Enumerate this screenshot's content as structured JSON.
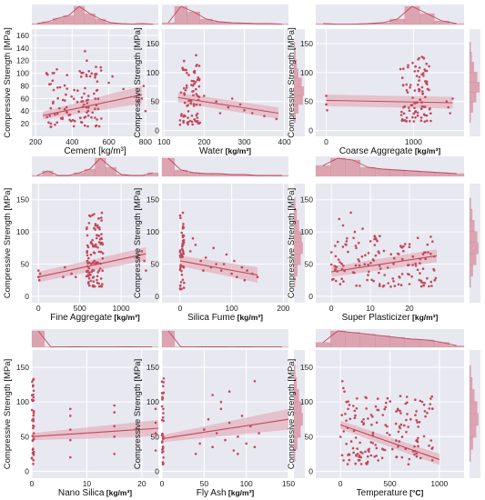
{
  "colors": {
    "panel_bg": "#e8e8f0",
    "grid": "#ffffff",
    "accent": "#c0485c",
    "band": "#e2a0ad",
    "bar": "#d98e9c"
  },
  "chart_data": [
    {
      "type": "scatter",
      "xlabel": "Cement [kg/m³]",
      "ylabel": "Compressive Strength [MPa]",
      "xlim": [
        180,
        870
      ],
      "ylim": [
        0,
        170
      ],
      "xticks": [
        200,
        400,
        600,
        800
      ],
      "yticks": [
        20,
        40,
        60,
        80,
        100,
        120,
        140,
        160
      ],
      "trend": {
        "x": [
          240,
          780
        ],
        "y": [
          33,
          66
        ],
        "band": [
          6,
          14
        ]
      },
      "cluster": {
        "x": [
          260,
          560
        ],
        "y": [
          15,
          110
        ],
        "n": 110
      },
      "points": {
        "x": [
          470,
          480,
          530,
          600,
          620,
          680,
          780,
          790,
          800,
          760
        ],
        "y": [
          135,
          120,
          110,
          85,
          95,
          75,
          60,
          80,
          40,
          55
        ]
      },
      "xhist": [
        0.05,
        0.15,
        0.35,
        0.5,
        1.0,
        0.6,
        0.3,
        0.1,
        0.05,
        0.03,
        0.05,
        0.02
      ],
      "yhist": [
        0.1,
        0.3,
        0.6,
        0.8,
        0.7,
        0.5,
        0.3,
        0.2,
        0.1,
        0.05
      ]
    },
    {
      "type": "scatter",
      "xlabel": "Water",
      "xunit": "[kg/m³]",
      "ylabel": "Compressive Strength [MPa]",
      "xlim": [
        95,
        410
      ],
      "ylim": [
        -10,
        175
      ],
      "xticks": [
        100,
        200,
        300,
        400
      ],
      "yticks": [
        0,
        50,
        100,
        150
      ],
      "trend": {
        "x": [
          135,
          385
        ],
        "y": [
          57,
          30
        ],
        "band": [
          8,
          10
        ]
      },
      "cluster": {
        "x": [
          140,
          190
        ],
        "y": [
          10,
          115
        ],
        "n": 80
      },
      "points": {
        "x": [
          200,
          230,
          260,
          270,
          300,
          320,
          350,
          380,
          240,
          290,
          180,
          150
        ],
        "y": [
          60,
          50,
          40,
          55,
          35,
          30,
          25,
          20,
          30,
          45,
          130,
          120
        ]
      },
      "xhist": [
        0.1,
        1.0,
        0.7,
        0.3,
        0.15,
        0.1,
        0.08,
        0.05,
        0.05,
        0.03
      ],
      "yhist": [
        0.15,
        0.4,
        0.8,
        0.9,
        0.7,
        0.4,
        0.25,
        0.15,
        0.08
      ]
    },
    {
      "type": "scatter",
      "xlabel": "Coarse Aggregate",
      "xunit": "[kg/m³]",
      "ylabel": "Compressive Strength [MPa]",
      "xlim": [
        -120,
        1580
      ],
      "ylim": [
        -10,
        175
      ],
      "xticks": [
        0,
        1000
      ],
      "yticks": [
        0,
        50,
        100,
        150
      ],
      "trend": {
        "x": [
          0,
          1450
        ],
        "y": [
          52,
          48
        ],
        "band": [
          10,
          10
        ]
      },
      "cluster": {
        "x": [
          850,
          1200
        ],
        "y": [
          15,
          130
        ],
        "n": 100
      },
      "points": {
        "x": [
          0,
          0,
          10,
          1400,
          1420,
          1450,
          1380
        ],
        "y": [
          45,
          60,
          35,
          40,
          30,
          55,
          50
        ]
      },
      "xhist": [
        0.05,
        0.02,
        0.02,
        0.05,
        0.1,
        0.3,
        1.0,
        0.6,
        0.2,
        0.05
      ],
      "yhist": [
        0.1,
        0.3,
        0.6,
        0.9,
        0.7,
        0.4,
        0.2,
        0.1
      ]
    },
    {
      "type": "scatter",
      "xlabel": "Fine Aggregate",
      "xunit": "[kg/m³]",
      "ylabel": "Compressive Strength [MPa]",
      "xlim": [
        -80,
        1450
      ],
      "ylim": [
        -10,
        175
      ],
      "xticks": [
        0,
        500,
        1000
      ],
      "yticks": [
        0,
        50,
        100,
        150
      ],
      "trend": {
        "x": [
          0,
          1300
        ],
        "y": [
          30,
          66
        ],
        "band": [
          8,
          10
        ]
      },
      "cluster": {
        "x": [
          580,
          780
        ],
        "y": [
          15,
          130
        ],
        "n": 110
      },
      "points": {
        "x": [
          0,
          0,
          10,
          20,
          300,
          320,
          1200,
          1250,
          1300,
          1280,
          400,
          450
        ],
        "y": [
          30,
          40,
          25,
          35,
          30,
          45,
          60,
          70,
          40,
          55,
          35,
          30
        ]
      },
      "xhist": [
        0.05,
        0.3,
        0.05,
        0.05,
        0.2,
        0.4,
        1.0,
        0.5,
        0.1,
        0.05,
        0.05,
        0.2
      ],
      "yhist": [
        0.1,
        0.3,
        0.6,
        0.8,
        0.7,
        0.45,
        0.25,
        0.12
      ]
    },
    {
      "type": "scatter",
      "xlabel": "Silica Fume",
      "xunit": "[kg/m³]",
      "ylabel": "Compressive Strength [MPa]",
      "xlim": [
        -35,
        210
      ],
      "ylim": [
        -10,
        175
      ],
      "xticks": [
        0,
        100,
        200
      ],
      "yticks": [
        0,
        50,
        100,
        150
      ],
      "trend": {
        "x": [
          0,
          150
        ],
        "y": [
          55,
          33
        ],
        "band": [
          8,
          12
        ]
      },
      "cluster": {
        "x": [
          0,
          8
        ],
        "y": [
          10,
          135
        ],
        "n": 50
      },
      "points": {
        "x": [
          20,
          30,
          40,
          50,
          60,
          70,
          80,
          90,
          100,
          110,
          120,
          130,
          140,
          150,
          25,
          45,
          65,
          85,
          105,
          125
        ],
        "y": [
          70,
          80,
          55,
          60,
          45,
          50,
          40,
          65,
          35,
          30,
          45,
          40,
          35,
          30,
          90,
          40,
          75,
          50,
          55,
          25
        ]
      },
      "xhist": [
        1.0,
        0.35,
        0.2,
        0.15,
        0.15,
        0.1,
        0.1,
        0.05,
        0.05,
        0.05
      ],
      "yhist": [
        0.1,
        0.3,
        0.6,
        0.8,
        0.7,
        0.45,
        0.25,
        0.12
      ]
    },
    {
      "type": "scatter",
      "xlabel": "Super Plasticizer",
      "xunit": "[kg/m³]",
      "ylabel": "Compressive Strength [MPa]",
      "xlim": [
        -4,
        34
      ],
      "ylim": [
        -10,
        175
      ],
      "xticks": [
        0,
        10,
        20
      ],
      "yticks": [
        0,
        50,
        100,
        150
      ],
      "trend": {
        "x": [
          0,
          27
        ],
        "y": [
          38,
          63
        ],
        "band": [
          8,
          10
        ]
      },
      "cluster": {
        "x": [
          0,
          27
        ],
        "y": [
          15,
          95
        ],
        "n": 140
      },
      "points": {
        "x": [
          3,
          5,
          6,
          8,
          2,
          4
        ],
        "y": [
          110,
          130,
          100,
          105,
          120,
          90
        ]
      },
      "xhist": [
        0.6,
        1.0,
        0.9,
        0.5,
        0.4,
        0.35,
        0.3,
        0.25,
        0.2,
        0.15
      ],
      "yhist": [
        0.1,
        0.3,
        0.6,
        0.8,
        0.7,
        0.45,
        0.25,
        0.12
      ]
    },
    {
      "type": "scatter",
      "xlabel": "Nano Silica",
      "xunit": "[kg/m³]",
      "ylabel": "Compressive Strength [MPa]",
      "xlim": [
        0,
        23
      ],
      "ylim": [
        -10,
        175
      ],
      "xticks": [
        0,
        10,
        20
      ],
      "yticks": [
        0,
        50,
        100,
        150
      ],
      "trend": {
        "x": [
          0,
          23
        ],
        "y": [
          50,
          62
        ],
        "band": [
          5,
          12
        ]
      },
      "cluster": {
        "x": [
          0,
          0.4
        ],
        "y": [
          10,
          135
        ],
        "n": 40
      },
      "points": {
        "x": [
          7,
          7,
          7,
          7,
          7,
          15,
          15,
          15,
          15,
          15,
          22.5,
          22.5,
          22.5,
          22.5
        ],
        "y": [
          20,
          45,
          60,
          80,
          90,
          25,
          50,
          65,
          85,
          95,
          30,
          55,
          70,
          90
        ]
      },
      "xhist": [
        1.0,
        0.02,
        0.02,
        0.03,
        0.02,
        0.02,
        0.02,
        0.03,
        0.02,
        0.02
      ],
      "yhist": [
        0.1,
        0.3,
        0.6,
        0.8,
        0.7,
        0.45,
        0.25,
        0.12
      ]
    },
    {
      "type": "scatter",
      "xlabel": "Fly Ash",
      "xunit": "[kg/m³]",
      "ylabel": "Compressive Strength [MPa]",
      "xlim": [
        0,
        150
      ],
      "ylim": [
        -10,
        175
      ],
      "xticks": [
        0,
        50,
        100,
        150
      ],
      "yticks": [
        0,
        50,
        100,
        150
      ],
      "trend": {
        "x": [
          0,
          150
        ],
        "y": [
          47,
          75
        ],
        "band": [
          5,
          15
        ]
      },
      "cluster": {
        "x": [
          0,
          2
        ],
        "y": [
          10,
          135
        ],
        "n": 35
      },
      "points": {
        "x": [
          40,
          45,
          50,
          55,
          60,
          65,
          70,
          75,
          80,
          85,
          90,
          95,
          100,
          105,
          110,
          115,
          60,
          70,
          80,
          90,
          110
        ],
        "y": [
          25,
          40,
          60,
          75,
          35,
          55,
          90,
          45,
          70,
          30,
          50,
          80,
          40,
          65,
          130,
          55,
          110,
          100,
          115,
          25,
          35
        ]
      },
      "xhist": [
        1.0,
        0.02,
        0.02,
        0.03,
        0.03,
        0.02,
        0.03,
        0.02,
        0.02,
        0.02
      ],
      "yhist": [
        0.1,
        0.3,
        0.6,
        0.8,
        0.7,
        0.45,
        0.25,
        0.12
      ]
    },
    {
      "type": "scatter",
      "xlabel": "Temperature",
      "xunit": "[°C]",
      "ylabel": "Compressive Strength [MPa]",
      "xlim": [
        -250,
        1250
      ],
      "ylim": [
        -10,
        175
      ],
      "xticks": [
        0,
        500,
        1000
      ],
      "yticks": [
        0,
        50,
        100,
        150
      ],
      "trend": {
        "x": [
          0,
          1000
        ],
        "y": [
          67,
          17
        ],
        "band": [
          6,
          8
        ]
      },
      "cluster": {
        "x": [
          0,
          950
        ],
        "y": [
          10,
          110
        ],
        "n": 160
      },
      "points": {
        "x": [
          20,
          30,
          40,
          60
        ],
        "y": [
          130,
          120,
          115,
          100
        ]
      },
      "xhist": [
        0.3,
        1.0,
        0.9,
        0.8,
        0.7,
        0.6,
        0.5,
        0.45,
        0.3,
        0.1
      ],
      "yhist": [
        0.1,
        0.3,
        0.6,
        0.8,
        0.7,
        0.45,
        0.25,
        0.12
      ]
    }
  ]
}
